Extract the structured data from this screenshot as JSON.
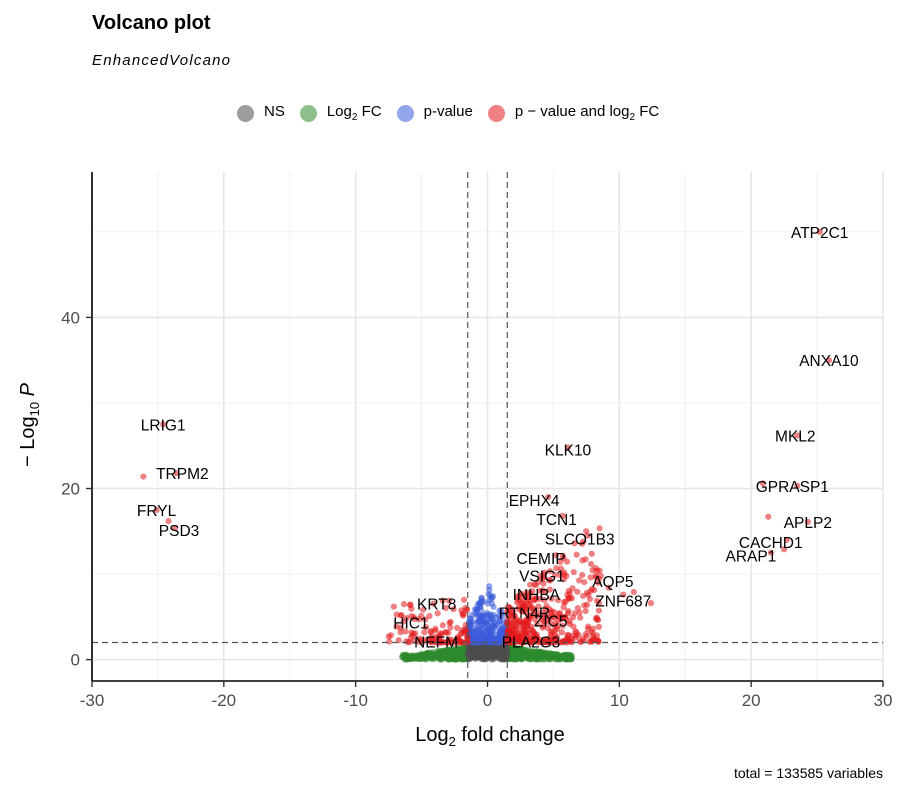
{
  "header": {
    "title": "Volcano plot",
    "subtitle": "EnhancedVolcano"
  },
  "legend": [
    {
      "label": "NS",
      "sub": "",
      "after": "",
      "color": "#4d4d4d"
    },
    {
      "label": "Log",
      "sub": "2",
      "after": " FC",
      "color": "#2e8b2e"
    },
    {
      "label": "p-value",
      "sub": "",
      "after": "",
      "color": "#3b5bdb"
    },
    {
      "label": "p − value and log",
      "sub": "2",
      "after": " FC",
      "color": "#e41a1c"
    }
  ],
  "caption": "total = 133585 variables",
  "chart_data": {
    "type": "scatter",
    "title": "Volcano plot",
    "subtitle": "EnhancedVolcano",
    "xlabel": {
      "prefix": "Log",
      "sub": "2",
      "suffix": " fold change"
    },
    "ylabel": {
      "prefix": "− Log",
      "sub": "10",
      "suffix": " P"
    },
    "xlim": [
      -30,
      30
    ],
    "ylim": [
      -2.5,
      57
    ],
    "x_ticks": [
      -30,
      -20,
      -10,
      0,
      10,
      20,
      30
    ],
    "x_tick_labels": [
      "-30",
      "-20",
      "-10",
      "0",
      "10",
      "20",
      "30"
    ],
    "y_ticks": [
      0,
      20,
      40
    ],
    "y_tick_labels": [
      "0",
      "20",
      "40"
    ],
    "grid": true,
    "legend_position": "top",
    "fc_cutoff": 1.5,
    "p_cutoff": 2,
    "colors": {
      "NS": "#4d4d4d",
      "FC": "#2e8b2e",
      "P": "#3b5bdb",
      "FC_P": "#e41a1c"
    },
    "labeled_points": [
      {
        "label": "ATP2C1",
        "x": 25.2,
        "y": 50.0
      },
      {
        "label": "ANXA10",
        "x": 25.9,
        "y": 35.0
      },
      {
        "label": "MKL2",
        "x": 23.5,
        "y": 26.2
      },
      {
        "label": "GPRASP1",
        "x": 23.5,
        "y": 20.3
      },
      {
        "label": "APLP2",
        "x": 24.3,
        "y": 16.1
      },
      {
        "label": "CACHD1",
        "x": 22.7,
        "y": 14.0
      },
      {
        "label": "ARAP1",
        "x": 21.5,
        "y": 12.5
      },
      {
        "label": "LRIG1",
        "x": -24.6,
        "y": 27.5
      },
      {
        "label": "TRPM2",
        "x": -23.6,
        "y": 21.8
      },
      {
        "label": "FRYL",
        "x": -25.1,
        "y": 17.5
      },
      {
        "label": "PSD3",
        "x": -23.7,
        "y": 15.4
      },
      {
        "label": "KLK10",
        "x": 6.1,
        "y": 24.8
      },
      {
        "label": "EPHX4",
        "x": 4.6,
        "y": 19.0
      },
      {
        "label": "TCN1",
        "x": 5.7,
        "y": 16.8
      },
      {
        "label": "SLCO1B3",
        "x": 7.6,
        "y": 14.5
      },
      {
        "label": "CEMIP",
        "x": 5.2,
        "y": 12.2
      },
      {
        "label": "VSIG1",
        "x": 5.8,
        "y": 10.2
      },
      {
        "label": "AQP5",
        "x": 8.6,
        "y": 9.8
      },
      {
        "label": "ZNF687",
        "x": 10.3,
        "y": 7.6
      },
      {
        "label": "INHBA",
        "x": 3.4,
        "y": 8.0
      },
      {
        "label": "RTN4R",
        "x": 2.8,
        "y": 6.3
      },
      {
        "label": "ZIC5",
        "x": 4.8,
        "y": 5.5
      },
      {
        "label": "PLA2G3",
        "x": 3.3,
        "y": 3.5
      },
      {
        "label": "KRT8",
        "x": -3.4,
        "y": 6.9
      },
      {
        "label": "HIC1",
        "x": -5.2,
        "y": 4.7
      },
      {
        "label": "NEFM",
        "x": -3.6,
        "y": 2.8
      }
    ]
  }
}
